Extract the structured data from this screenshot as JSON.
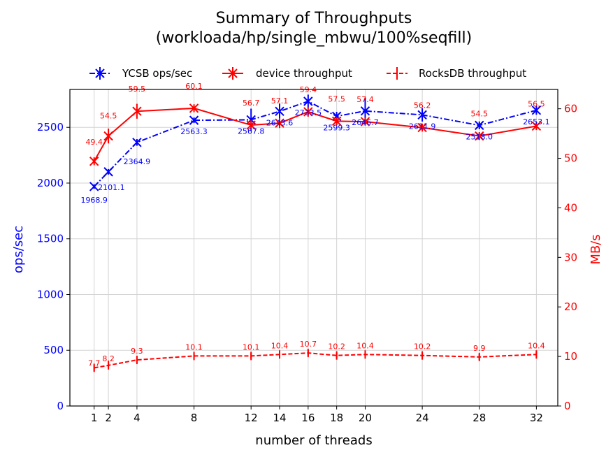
{
  "chart_data": {
    "type": "line",
    "title": "Summary of Throughputs",
    "subtitle": "(workloada/hp/single_mbwu/100%seqfill)",
    "xlabel": "number of threads",
    "ylabel": "ops/sec",
    "y2label": "MB/s",
    "x": [
      1,
      2,
      4,
      8,
      12,
      14,
      16,
      18,
      20,
      24,
      28,
      32
    ],
    "xlim": [
      -0.7,
      33.5
    ],
    "ylim": [
      0,
      2840
    ],
    "y2lim": [
      0,
      63.9
    ],
    "xticks": [
      1,
      2,
      4,
      8,
      12,
      14,
      16,
      18,
      20,
      24,
      28,
      32
    ],
    "yticks": [
      0,
      500,
      1000,
      1500,
      2000,
      2500
    ],
    "y2ticks": [
      0,
      10,
      20,
      30,
      40,
      50,
      60
    ],
    "grid": true,
    "legend_position": "top-center",
    "series": [
      {
        "name": "YCSB ops/sec",
        "axis": "left",
        "color": "#0000ff",
        "linestyle": "dashdot",
        "marker": "x",
        "values": [
          1968.9,
          2101.1,
          2364.9,
          2563.3,
          2567.8,
          2643.6,
          2733.5,
          2599.3,
          2646.7,
          2611.9,
          2518.0,
          2653.1
        ],
        "labels": [
          "1968.9",
          "2101.1",
          "2364.9",
          "2563.3",
          "2567.8",
          "2643.6",
          "2733.5",
          "2599.3",
          "2646.7",
          "2611.9",
          "2518.0",
          "2653.1"
        ],
        "errors": [
          20,
          25,
          30,
          25,
          100,
          70,
          60,
          40,
          120,
          60,
          35,
          40
        ]
      },
      {
        "name": "device throughput",
        "axis": "right",
        "color": "#ff0000",
        "linestyle": "solid",
        "marker": "x",
        "values": [
          49.4,
          54.5,
          59.5,
          60.1,
          56.7,
          57.1,
          59.4,
          57.5,
          57.4,
          56.2,
          54.5,
          56.5
        ],
        "labels": [
          "49.4",
          "54.5",
          "59.5",
          "60.1",
          "56.7",
          "57.1",
          "59.4",
          "57.5",
          "57.4",
          "56.2",
          "54.5",
          "56.5"
        ],
        "errors": [
          0.8,
          1.5,
          1.5,
          0.8,
          1.0,
          1.0,
          1.0,
          0.8,
          0.8,
          0.8,
          0.8,
          0.8
        ]
      },
      {
        "name": "RocksDB throughput",
        "axis": "right",
        "color": "#ff0000",
        "linestyle": "dashed",
        "marker": "|",
        "values": [
          7.7,
          8.2,
          9.3,
          10.1,
          10.1,
          10.4,
          10.7,
          10.2,
          10.4,
          10.2,
          9.9,
          10.4
        ],
        "labels": [
          "7.7",
          "8.2",
          "9.3",
          "10.1",
          "10.1",
          "10.4",
          "10.7",
          "10.2",
          "10.4",
          "10.2",
          "9.9",
          "10.4"
        ],
        "errors": [
          0.6,
          0.6,
          0.6,
          0.6,
          0.6,
          0.6,
          0.6,
          0.6,
          0.6,
          0.6,
          0.6,
          0.6
        ]
      }
    ]
  }
}
